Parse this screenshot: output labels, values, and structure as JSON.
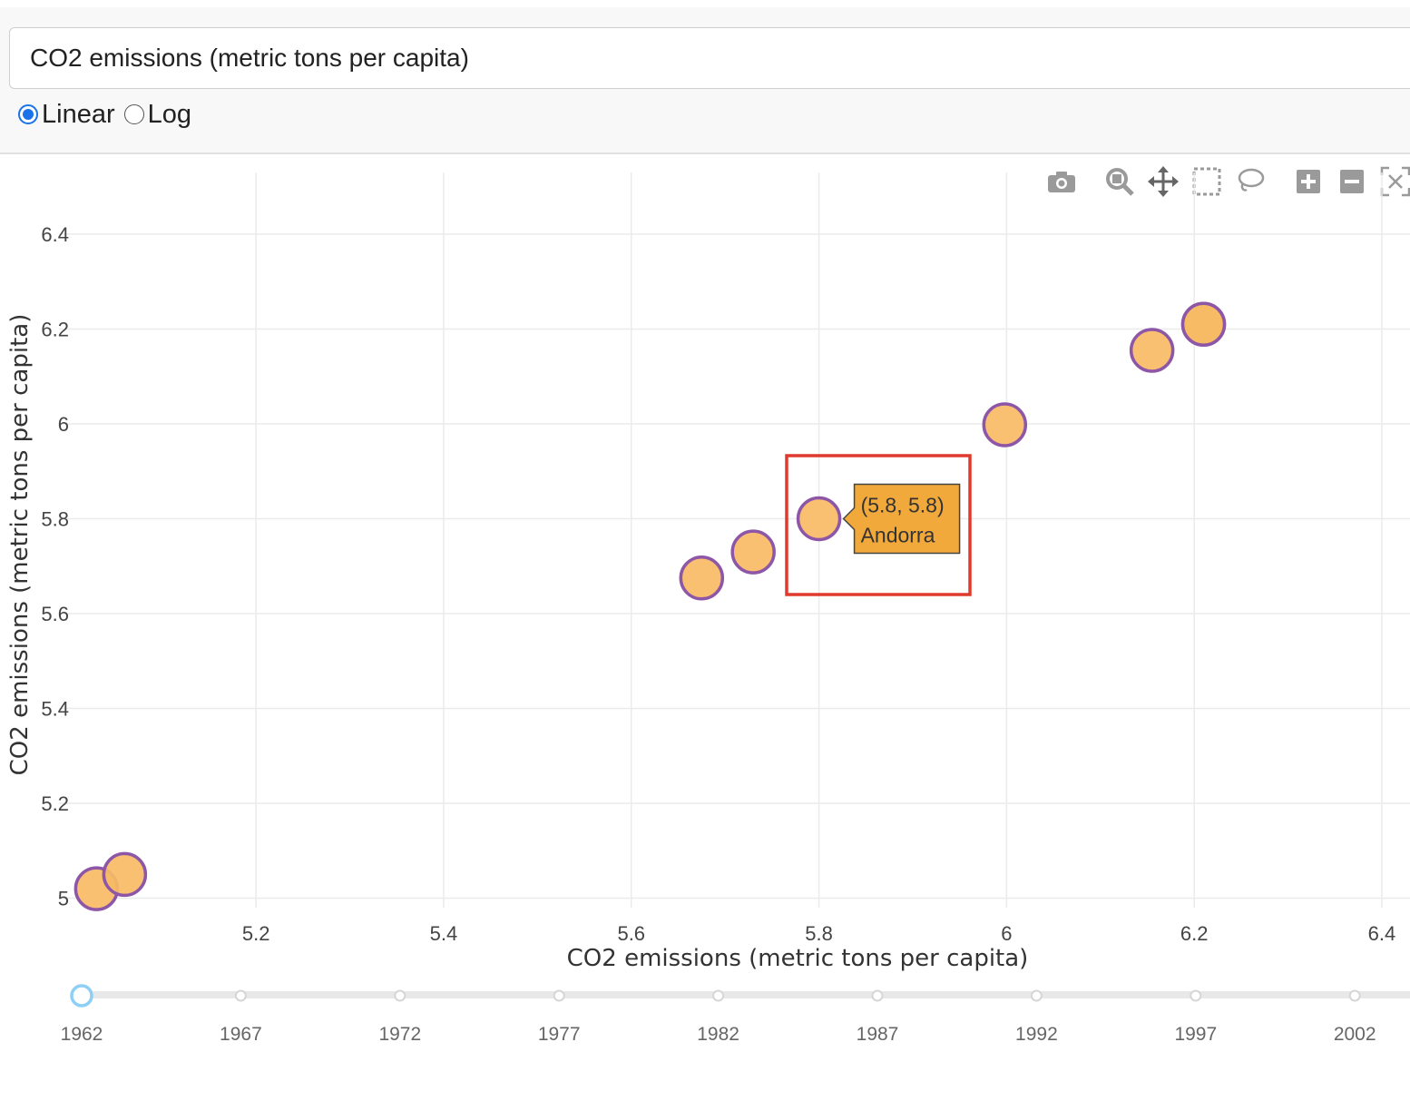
{
  "controls": {
    "dropdown_value": "CO2 emissions (metric tons per capita)",
    "scale_options": [
      {
        "label": "Linear",
        "checked": true
      },
      {
        "label": "Log",
        "checked": false
      }
    ]
  },
  "modebar": {
    "icons": [
      "camera-icon",
      "zoom-icon",
      "pan-icon",
      "box-select-icon",
      "lasso-select-icon",
      "zoom-in-icon",
      "zoom-out-icon",
      "autoscale-icon"
    ]
  },
  "chart_data": {
    "type": "scatter",
    "xlabel": "CO2 emissions (metric tons per capita)",
    "ylabel": "CO2 emissions (metric tons per capita)",
    "xlim": [
      4.99,
      6.43
    ],
    "ylim": [
      4.98,
      6.53
    ],
    "x_ticks": [
      "5.2",
      "5.4",
      "5.6",
      "5.8",
      "6",
      "6.2",
      "6.4"
    ],
    "y_ticks": [
      "5",
      "5.2",
      "5.4",
      "5.6",
      "5.8",
      "6",
      "6.2",
      "6.4"
    ],
    "grid": true,
    "marker_fill": "#f7bb64",
    "marker_stroke": "#8e56a6",
    "points": [
      {
        "x": 5.03,
        "y": 5.02
      },
      {
        "x": 5.06,
        "y": 5.05
      },
      {
        "x": 5.675,
        "y": 5.675
      },
      {
        "x": 5.73,
        "y": 5.73
      },
      {
        "x": 5.8,
        "y": 5.8
      },
      {
        "x": 5.998,
        "y": 5.998
      },
      {
        "x": 6.155,
        "y": 6.155
      },
      {
        "x": 6.21,
        "y": 6.21
      },
      {
        "x": 6.21,
        "y": 6.21
      }
    ],
    "hover": {
      "text_line1": "(5.8, 5.8)",
      "text_line2": "Andorra",
      "bg": "#f2a93b"
    }
  },
  "slider": {
    "labels": [
      "1962",
      "1967",
      "1972",
      "1977",
      "1982",
      "1987",
      "1992",
      "1997",
      "2002"
    ],
    "active": "1962"
  }
}
